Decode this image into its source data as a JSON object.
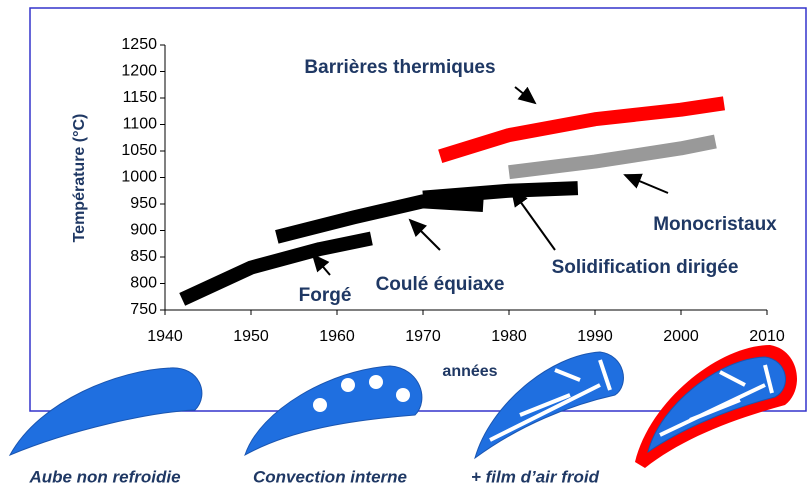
{
  "chart_data": {
    "type": "line",
    "y_label": "Température (°C)",
    "x_label": "années",
    "xlim": [
      1940,
      2010
    ],
    "xticks": [
      1940,
      1950,
      1960,
      1970,
      1980,
      1990,
      2000,
      2010
    ],
    "ylim": [
      750,
      1250
    ],
    "yticks": [
      750,
      800,
      850,
      900,
      950,
      1000,
      1050,
      1100,
      1150,
      1200,
      1250
    ],
    "series": [
      {
        "name": "Forgé",
        "color": "#000000",
        "x": [
          1942,
          1950,
          1958,
          1964
        ],
        "values": [
          770,
          830,
          865,
          885
        ]
      },
      {
        "name": "Coulé équiaxe",
        "color": "#000000",
        "x": [
          1953,
          1962,
          1970,
          1977
        ],
        "values": [
          888,
          925,
          955,
          948
        ]
      },
      {
        "name": "Solidification dirigée",
        "color": "#000000",
        "x": [
          1970,
          1980,
          1988
        ],
        "values": [
          962,
          975,
          980
        ]
      },
      {
        "name": "Monocristaux",
        "color": "#999999",
        "x": [
          1980,
          1990,
          2000,
          2004
        ],
        "values": [
          1010,
          1030,
          1055,
          1068
        ]
      },
      {
        "name": "Barrières thermiques",
        "color": "#ff0000",
        "x": [
          1972,
          1980,
          1990,
          2000,
          2005
        ],
        "values": [
          1040,
          1080,
          1110,
          1128,
          1140
        ]
      }
    ]
  },
  "captions": [
    "Aube non refroidie",
    "Convection interne",
    "+ film d’air froid"
  ]
}
